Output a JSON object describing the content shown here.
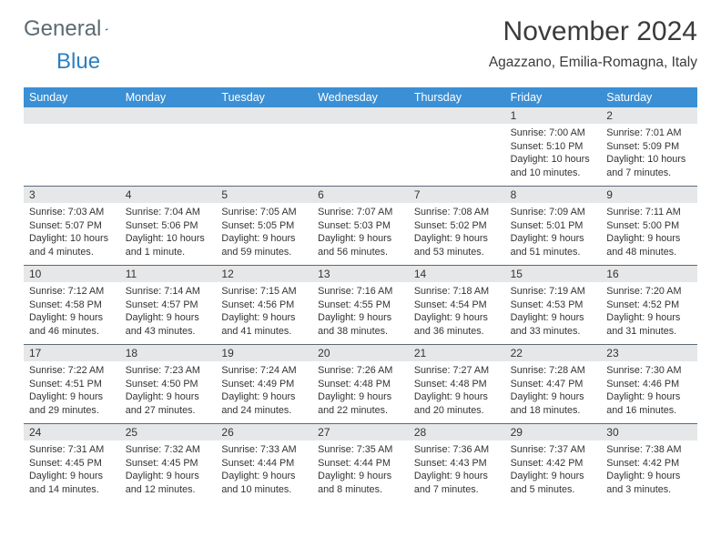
{
  "brand": {
    "word1": "General",
    "word2": "Blue",
    "text_color": "#5c6b74",
    "accent_color": "#2d7fbf"
  },
  "title": "November 2024",
  "location": "Agazzano, Emilia-Romagna, Italy",
  "colors": {
    "header_bg": "#3b8fd4",
    "header_text": "#ffffff",
    "daynum_bg": "#e6e7e8",
    "body_text": "#333333",
    "rule": "#5b6a78",
    "page_bg": "#ffffff"
  },
  "weekdays": [
    "Sunday",
    "Monday",
    "Tuesday",
    "Wednesday",
    "Thursday",
    "Friday",
    "Saturday"
  ],
  "weeks": [
    [
      null,
      null,
      null,
      null,
      null,
      {
        "n": "1",
        "sunrise": "Sunrise: 7:00 AM",
        "sunset": "Sunset: 5:10 PM",
        "day": "Daylight: 10 hours and 10 minutes."
      },
      {
        "n": "2",
        "sunrise": "Sunrise: 7:01 AM",
        "sunset": "Sunset: 5:09 PM",
        "day": "Daylight: 10 hours and 7 minutes."
      }
    ],
    [
      {
        "n": "3",
        "sunrise": "Sunrise: 7:03 AM",
        "sunset": "Sunset: 5:07 PM",
        "day": "Daylight: 10 hours and 4 minutes."
      },
      {
        "n": "4",
        "sunrise": "Sunrise: 7:04 AM",
        "sunset": "Sunset: 5:06 PM",
        "day": "Daylight: 10 hours and 1 minute."
      },
      {
        "n": "5",
        "sunrise": "Sunrise: 7:05 AM",
        "sunset": "Sunset: 5:05 PM",
        "day": "Daylight: 9 hours and 59 minutes."
      },
      {
        "n": "6",
        "sunrise": "Sunrise: 7:07 AM",
        "sunset": "Sunset: 5:03 PM",
        "day": "Daylight: 9 hours and 56 minutes."
      },
      {
        "n": "7",
        "sunrise": "Sunrise: 7:08 AM",
        "sunset": "Sunset: 5:02 PM",
        "day": "Daylight: 9 hours and 53 minutes."
      },
      {
        "n": "8",
        "sunrise": "Sunrise: 7:09 AM",
        "sunset": "Sunset: 5:01 PM",
        "day": "Daylight: 9 hours and 51 minutes."
      },
      {
        "n": "9",
        "sunrise": "Sunrise: 7:11 AM",
        "sunset": "Sunset: 5:00 PM",
        "day": "Daylight: 9 hours and 48 minutes."
      }
    ],
    [
      {
        "n": "10",
        "sunrise": "Sunrise: 7:12 AM",
        "sunset": "Sunset: 4:58 PM",
        "day": "Daylight: 9 hours and 46 minutes."
      },
      {
        "n": "11",
        "sunrise": "Sunrise: 7:14 AM",
        "sunset": "Sunset: 4:57 PM",
        "day": "Daylight: 9 hours and 43 minutes."
      },
      {
        "n": "12",
        "sunrise": "Sunrise: 7:15 AM",
        "sunset": "Sunset: 4:56 PM",
        "day": "Daylight: 9 hours and 41 minutes."
      },
      {
        "n": "13",
        "sunrise": "Sunrise: 7:16 AM",
        "sunset": "Sunset: 4:55 PM",
        "day": "Daylight: 9 hours and 38 minutes."
      },
      {
        "n": "14",
        "sunrise": "Sunrise: 7:18 AM",
        "sunset": "Sunset: 4:54 PM",
        "day": "Daylight: 9 hours and 36 minutes."
      },
      {
        "n": "15",
        "sunrise": "Sunrise: 7:19 AM",
        "sunset": "Sunset: 4:53 PM",
        "day": "Daylight: 9 hours and 33 minutes."
      },
      {
        "n": "16",
        "sunrise": "Sunrise: 7:20 AM",
        "sunset": "Sunset: 4:52 PM",
        "day": "Daylight: 9 hours and 31 minutes."
      }
    ],
    [
      {
        "n": "17",
        "sunrise": "Sunrise: 7:22 AM",
        "sunset": "Sunset: 4:51 PM",
        "day": "Daylight: 9 hours and 29 minutes."
      },
      {
        "n": "18",
        "sunrise": "Sunrise: 7:23 AM",
        "sunset": "Sunset: 4:50 PM",
        "day": "Daylight: 9 hours and 27 minutes."
      },
      {
        "n": "19",
        "sunrise": "Sunrise: 7:24 AM",
        "sunset": "Sunset: 4:49 PM",
        "day": "Daylight: 9 hours and 24 minutes."
      },
      {
        "n": "20",
        "sunrise": "Sunrise: 7:26 AM",
        "sunset": "Sunset: 4:48 PM",
        "day": "Daylight: 9 hours and 22 minutes."
      },
      {
        "n": "21",
        "sunrise": "Sunrise: 7:27 AM",
        "sunset": "Sunset: 4:48 PM",
        "day": "Daylight: 9 hours and 20 minutes."
      },
      {
        "n": "22",
        "sunrise": "Sunrise: 7:28 AM",
        "sunset": "Sunset: 4:47 PM",
        "day": "Daylight: 9 hours and 18 minutes."
      },
      {
        "n": "23",
        "sunrise": "Sunrise: 7:30 AM",
        "sunset": "Sunset: 4:46 PM",
        "day": "Daylight: 9 hours and 16 minutes."
      }
    ],
    [
      {
        "n": "24",
        "sunrise": "Sunrise: 7:31 AM",
        "sunset": "Sunset: 4:45 PM",
        "day": "Daylight: 9 hours and 14 minutes."
      },
      {
        "n": "25",
        "sunrise": "Sunrise: 7:32 AM",
        "sunset": "Sunset: 4:45 PM",
        "day": "Daylight: 9 hours and 12 minutes."
      },
      {
        "n": "26",
        "sunrise": "Sunrise: 7:33 AM",
        "sunset": "Sunset: 4:44 PM",
        "day": "Daylight: 9 hours and 10 minutes."
      },
      {
        "n": "27",
        "sunrise": "Sunrise: 7:35 AM",
        "sunset": "Sunset: 4:44 PM",
        "day": "Daylight: 9 hours and 8 minutes."
      },
      {
        "n": "28",
        "sunrise": "Sunrise: 7:36 AM",
        "sunset": "Sunset: 4:43 PM",
        "day": "Daylight: 9 hours and 7 minutes."
      },
      {
        "n": "29",
        "sunrise": "Sunrise: 7:37 AM",
        "sunset": "Sunset: 4:42 PM",
        "day": "Daylight: 9 hours and 5 minutes."
      },
      {
        "n": "30",
        "sunrise": "Sunrise: 7:38 AM",
        "sunset": "Sunset: 4:42 PM",
        "day": "Daylight: 9 hours and 3 minutes."
      }
    ]
  ]
}
